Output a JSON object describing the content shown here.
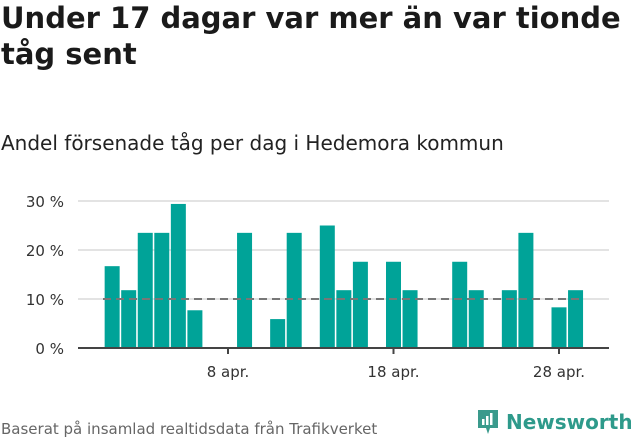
{
  "header": {
    "title": "Under 17 dagar var mer än var tionde tåg sent",
    "subtitle": "Andel försenade tåg per dag i Hedemora kommun"
  },
  "footer": {
    "source": "Baserat på insamlad realtidsdata från Trafikverket",
    "brand": "Newsworthy"
  },
  "colors": {
    "bar": "#00a398",
    "reference_line": "#777777",
    "grid": "#e3e3e3",
    "axis": "#444444"
  },
  "chart_data": {
    "type": "bar",
    "title": "Andel försenade tåg per dag i Hedemora kommun",
    "xlabel": "",
    "ylabel": "",
    "ylim": [
      0,
      30
    ],
    "yticks": [
      "0 %",
      "10 %",
      "20 %",
      "30 %"
    ],
    "xticks": [
      {
        "day": 8,
        "label": "8 apr."
      },
      {
        "day": 18,
        "label": "18 apr."
      },
      {
        "day": 28,
        "label": "28 apr."
      }
    ],
    "reference_line": {
      "value": 10,
      "style": "dashed"
    },
    "grid": true,
    "categories": [
      "1 apr.",
      "2 apr.",
      "3 apr.",
      "4 apr.",
      "5 apr.",
      "6 apr.",
      "7 apr.",
      "8 apr.",
      "9 apr.",
      "10 apr.",
      "11 apr.",
      "12 apr.",
      "13 apr.",
      "14 apr.",
      "15 apr.",
      "16 apr.",
      "17 apr.",
      "18 apr.",
      "19 apr.",
      "20 apr.",
      "21 apr.",
      "22 apr.",
      "23 apr.",
      "24 apr.",
      "25 apr.",
      "26 apr.",
      "27 apr.",
      "28 apr.",
      "29 apr."
    ],
    "values": [
      16.7,
      11.8,
      23.5,
      23.5,
      29.4,
      7.7,
      0,
      0,
      23.5,
      0,
      5.9,
      23.5,
      0,
      25.0,
      11.8,
      17.6,
      0,
      17.6,
      11.8,
      0,
      0,
      17.6,
      11.8,
      0,
      11.8,
      23.5,
      0,
      8.3,
      11.8
    ]
  }
}
